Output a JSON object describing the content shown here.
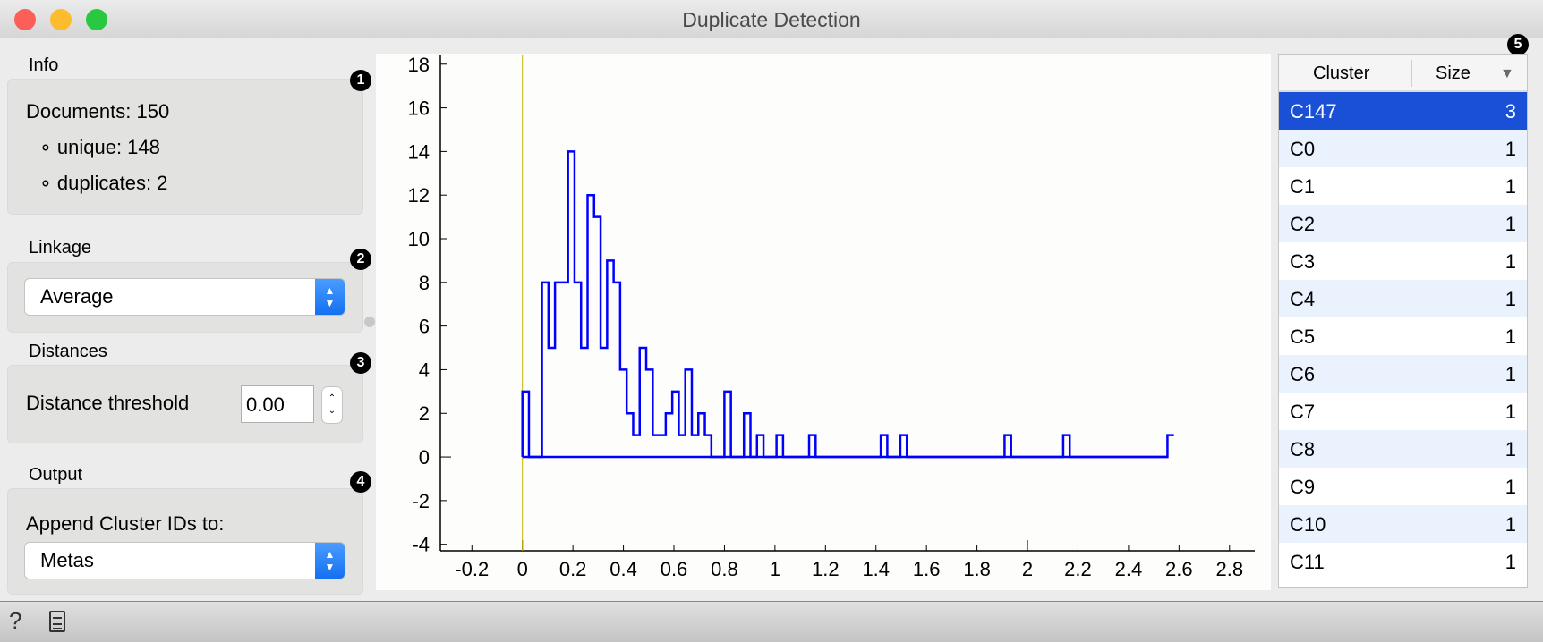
{
  "window": {
    "title": "Duplicate Detection"
  },
  "info": {
    "label": "Info",
    "badge": "1",
    "documents": "Documents: 150",
    "unique": "unique: 148",
    "duplicates": "duplicates: 2"
  },
  "linkage": {
    "label": "Linkage",
    "badge": "2",
    "value": "Average"
  },
  "distances": {
    "label": "Distances",
    "badge": "3",
    "threshold_label": "Distance threshold",
    "threshold_value": "0.00"
  },
  "output": {
    "label": "Output",
    "badge": "4",
    "append_label": "Append Cluster IDs to:",
    "value": "Metas"
  },
  "table": {
    "badge": "5",
    "headers": [
      "Cluster",
      "Size"
    ],
    "sort": "descending",
    "rows": [
      {
        "cluster": "C147",
        "size": "3",
        "selected": true
      },
      {
        "cluster": "C0",
        "size": "1"
      },
      {
        "cluster": "C1",
        "size": "1"
      },
      {
        "cluster": "C2",
        "size": "1"
      },
      {
        "cluster": "C3",
        "size": "1"
      },
      {
        "cluster": "C4",
        "size": "1"
      },
      {
        "cluster": "C5",
        "size": "1"
      },
      {
        "cluster": "C6",
        "size": "1"
      },
      {
        "cluster": "C7",
        "size": "1"
      },
      {
        "cluster": "C8",
        "size": "1"
      },
      {
        "cluster": "C9",
        "size": "1"
      },
      {
        "cluster": "C10",
        "size": "1"
      },
      {
        "cluster": "C11",
        "size": "1"
      }
    ]
  },
  "chart_data": {
    "type": "line",
    "subtype": "step histogram",
    "bin_start": 0,
    "bin_width": 0.0258,
    "counts": [
      3,
      0,
      0,
      8,
      5,
      8,
      8,
      14,
      8,
      5,
      12,
      11,
      5,
      9,
      8,
      4,
      2,
      1,
      5,
      4,
      1,
      1,
      2,
      3,
      1,
      4,
      1,
      2,
      1,
      0,
      0,
      3,
      0,
      0,
      2,
      0,
      1,
      0,
      0,
      1,
      0,
      0,
      0,
      0,
      1,
      0,
      0,
      0,
      0,
      0,
      0,
      0,
      0,
      0,
      0,
      1,
      0,
      0,
      1,
      0,
      0,
      0,
      0,
      0,
      0,
      0,
      0,
      0,
      0,
      0,
      0,
      0,
      0,
      0,
      1,
      0,
      0,
      0,
      0,
      0,
      0,
      0,
      0,
      1,
      0,
      0,
      0,
      0,
      0,
      0,
      0,
      0,
      0,
      0,
      0,
      0,
      0,
      0,
      0,
      1
    ],
    "threshold": 0.0,
    "xlim": [
      -0.325,
      2.9
    ],
    "ylim": [
      -4.3,
      18.4
    ],
    "xticks": [
      "-0.2",
      "0",
      "0.2",
      "0.4",
      "0.6",
      "0.8",
      "1",
      "1.2",
      "1.4",
      "1.6",
      "1.8",
      "2",
      "2.2",
      "2.4",
      "2.6",
      "2.8"
    ],
    "yticks": [
      "-4",
      "-2",
      "0",
      "2",
      "4",
      "6",
      "8",
      "10",
      "12",
      "14",
      "16",
      "18"
    ],
    "grid": false,
    "colors": {
      "line": "#0000ff",
      "threshold": "#c8b400"
    }
  }
}
